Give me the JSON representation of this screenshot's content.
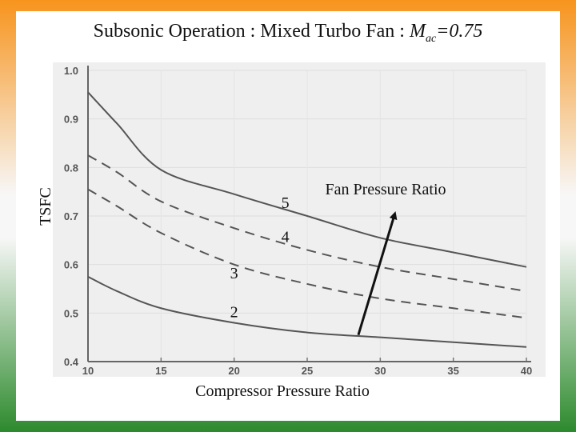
{
  "slide": {
    "title_prefix": "Subsonic Operation : Mixed Turbo Fan : ",
    "title_mach": "M",
    "title_mach_sub": "ac",
    "title_mach_value": "=0.75",
    "colors": {
      "top_band": "#f7941d",
      "bottom_band": "#2d8a2d"
    }
  },
  "chart_data": {
    "type": "line",
    "title": "Subsonic Operation : Mixed Turbo Fan : Mac=0.75",
    "xlabel": "Compressor Pressure Ratio",
    "ylabel": "TSFC",
    "xlim": [
      10,
      40
    ],
    "ylim": [
      0.4,
      1.0
    ],
    "x_ticks": [
      "10",
      "15",
      "20",
      "25",
      "30",
      "35",
      "40"
    ],
    "y_ticks": [
      "1.0",
      "0.9",
      "0.8",
      "0.7",
      "0.6",
      "0.5",
      "0.4"
    ],
    "series": [
      {
        "name": "5",
        "style": "solid",
        "x": [
          10,
          12,
          15,
          20,
          25,
          30,
          35,
          40
        ],
        "y": [
          0.955,
          0.89,
          0.795,
          0.745,
          0.7,
          0.655,
          0.625,
          0.595
        ]
      },
      {
        "name": "4",
        "style": "dashed",
        "x": [
          10,
          12,
          15,
          20,
          25,
          30,
          35,
          40
        ],
        "y": [
          0.825,
          0.79,
          0.73,
          0.675,
          0.63,
          0.595,
          0.57,
          0.545
        ]
      },
      {
        "name": "3",
        "style": "dashed",
        "x": [
          10,
          12,
          15,
          20,
          25,
          30,
          35,
          40
        ],
        "y": [
          0.755,
          0.72,
          0.665,
          0.6,
          0.56,
          0.53,
          0.51,
          0.49
        ]
      },
      {
        "name": "2",
        "style": "solid",
        "x": [
          10,
          12,
          15,
          20,
          25,
          30,
          35,
          40
        ],
        "y": [
          0.575,
          0.545,
          0.51,
          0.48,
          0.46,
          0.45,
          0.44,
          0.43
        ]
      }
    ],
    "annotation": {
      "text": "Fan Pressure Ratio",
      "arrow_from": [
        28.5,
        0.455
      ],
      "arrow_to": [
        31,
        0.705
      ]
    }
  }
}
